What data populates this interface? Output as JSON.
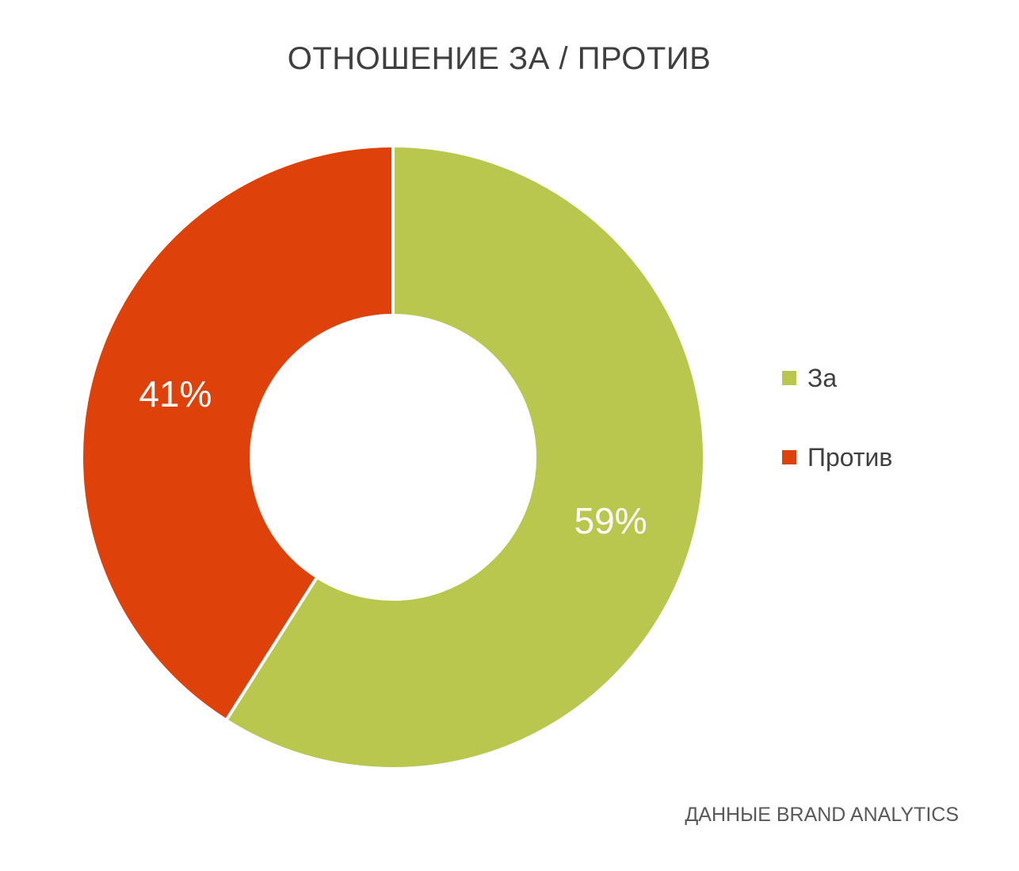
{
  "chart_data": {
    "type": "pie",
    "variant": "donut",
    "title": "ОТНОШЕНИЕ ЗА / ПРОТИВ",
    "categories": [
      "За",
      "Против"
    ],
    "values": [
      59,
      41
    ],
    "value_labels": [
      "59%",
      "41%"
    ],
    "colors": [
      "#b9c74f",
      "#de4109"
    ],
    "legend_position": "right",
    "source_note": "ДАННЫЕ BRAND ANALYTICS"
  }
}
